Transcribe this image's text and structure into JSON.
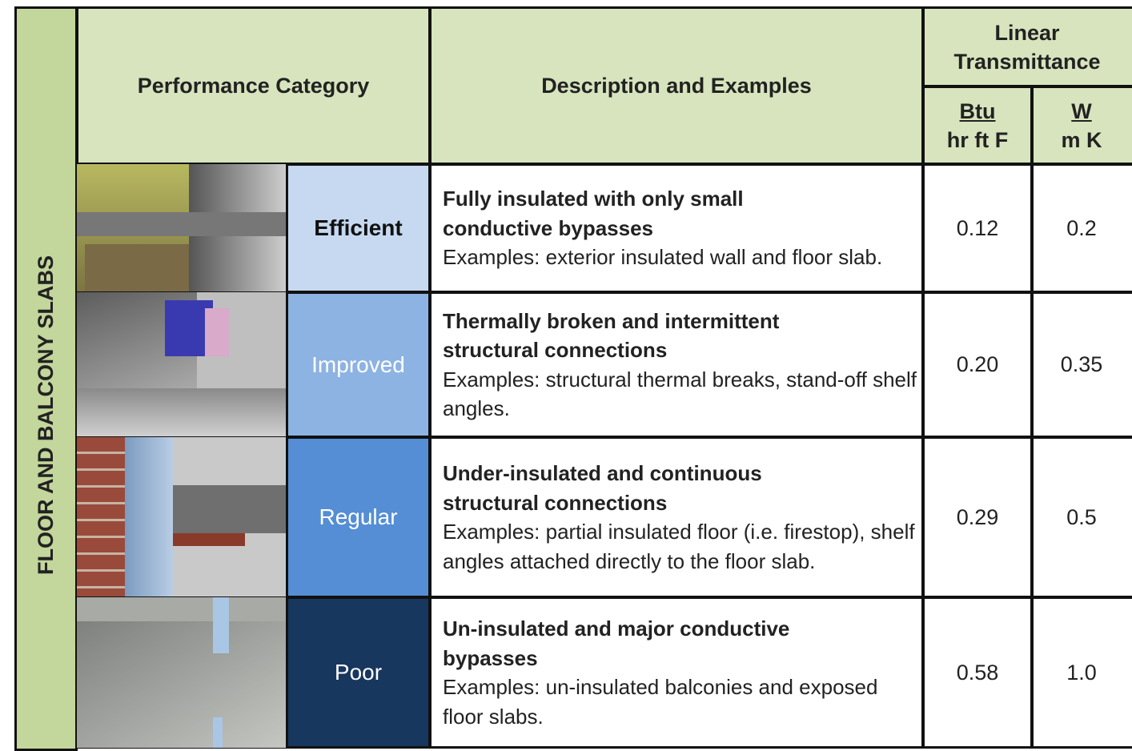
{
  "side_label": "FLOOR AND BALCONY SLABS",
  "header": {
    "performance_category": "Performance Category",
    "description": "Description and Examples",
    "linear_transmittance": "Linear Transmittance",
    "units": [
      {
        "numerator": "Btu",
        "denominator": "hr ft F"
      },
      {
        "numerator": "W",
        "denominator": "m K"
      }
    ]
  },
  "rows": [
    {
      "category": "Efficient",
      "title": "Fully insulated with only small conductive bypasses",
      "examples": "Examples: exterior insulated wall and floor slab.",
      "btu": "0.12",
      "w": "0.2"
    },
    {
      "category": "Improved",
      "title": "Thermally broken and intermittent structural connections",
      "examples": "Examples: structural thermal breaks, stand-off shelf angles.",
      "btu": "0.20",
      "w": "0.35"
    },
    {
      "category": "Regular",
      "title": "Under-insulated and continuous structural connections",
      "examples": "Examples: partial insulated floor (i.e. firestop), shelf angles attached directly to the floor slab.",
      "btu": "0.29",
      "w": "0.5"
    },
    {
      "category": "Poor",
      "title": "Un-insulated and major conductive bypasses",
      "examples": "Examples: un-insulated balconies and exposed floor slabs.",
      "btu": "0.58",
      "w": "1.0"
    }
  ]
}
